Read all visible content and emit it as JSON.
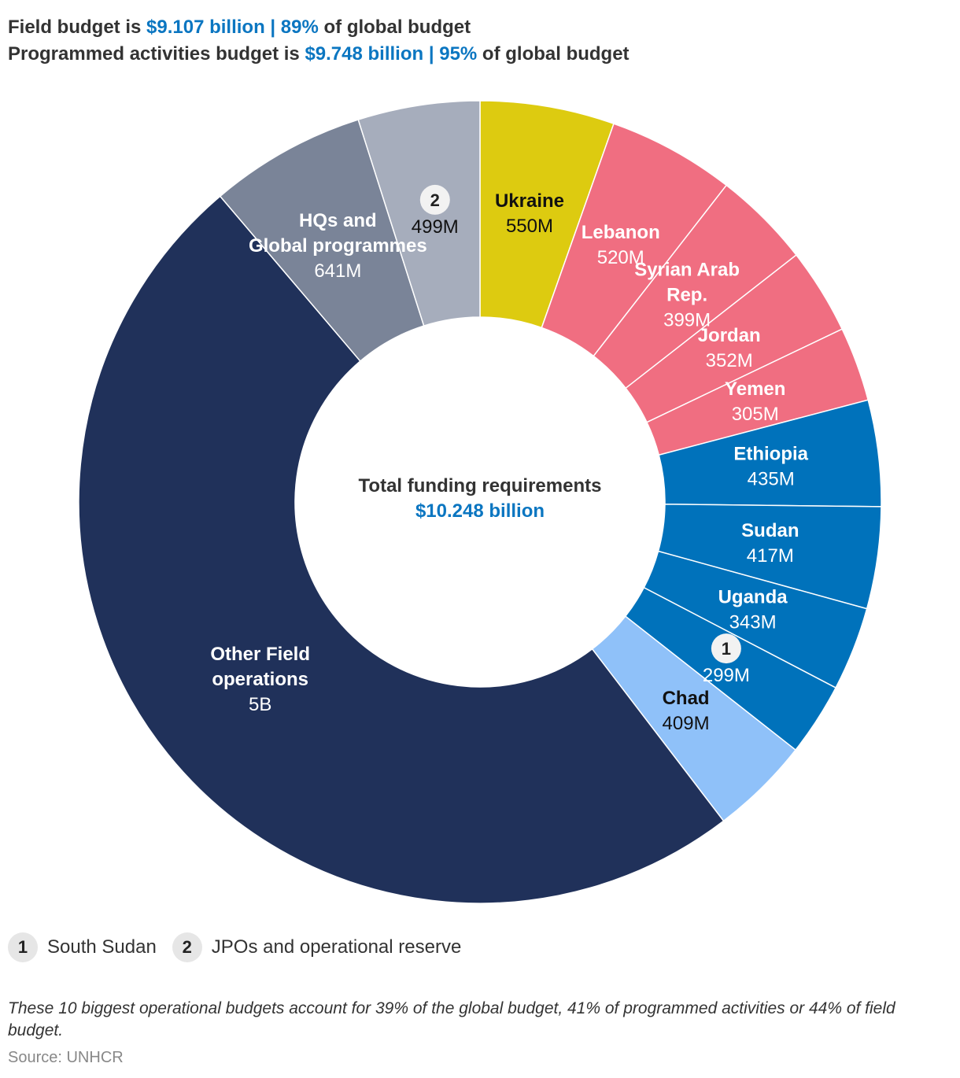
{
  "header": {
    "line1_a": "Field budget is ",
    "line1_b": "$9.107 billion | 89%",
    "line1_c": " of global budget",
    "line2_a": "Programmed activities budget is ",
    "line2_b": "$9.748 billion | 95%",
    "line2_c": " of global budget"
  },
  "center": {
    "title": "Total funding requirements",
    "value": "$10.248 billion"
  },
  "chart_data": {
    "type": "pie",
    "subtype": "donut",
    "units": "M (USD millions)",
    "slices": [
      {
        "label": "Ukraine",
        "display": "550M",
        "value": 550,
        "color": "#ddcb10",
        "text_color": "#111111"
      },
      {
        "label": "Lebanon",
        "display": "520M",
        "value": 520,
        "color": "#f06e81",
        "text_color": "#ffffff"
      },
      {
        "label": "Syrian Arab Rep.",
        "display": "399M",
        "value": 399,
        "color": "#f06e81",
        "text_color": "#ffffff"
      },
      {
        "label": "Jordan",
        "display": "352M",
        "value": 352,
        "color": "#f06e81",
        "text_color": "#ffffff"
      },
      {
        "label": "Yemen",
        "display": "305M",
        "value": 305,
        "color": "#f06e81",
        "text_color": "#ffffff"
      },
      {
        "label": "Ethiopia",
        "display": "435M",
        "value": 435,
        "color": "#0072bb",
        "text_color": "#ffffff"
      },
      {
        "label": "Sudan",
        "display": "417M",
        "value": 417,
        "color": "#0072bb",
        "text_color": "#ffffff"
      },
      {
        "label": "Uganda",
        "display": "343M",
        "value": 343,
        "color": "#0072bb",
        "text_color": "#ffffff"
      },
      {
        "label": "",
        "badge": "1",
        "display": "299M",
        "value": 299,
        "color": "#0072bb",
        "text_color": "#ffffff"
      },
      {
        "label": "Chad",
        "display": "409M",
        "value": 409,
        "color": "#8fc1f9",
        "text_color": "#111111"
      },
      {
        "label": "Other Field operations",
        "display": "5B",
        "value": 5000,
        "color": "#20315a",
        "text_color": "#ffffff"
      },
      {
        "label": "HQs and Global programmes",
        "display": "641M",
        "value": 641,
        "color": "#7a8498",
        "text_color": "#ffffff"
      },
      {
        "label": "",
        "badge": "2",
        "display": "499M",
        "value": 499,
        "color": "#a6adbc",
        "text_color": "#111111"
      }
    ]
  },
  "legend": [
    {
      "badge": "1",
      "label": "South Sudan"
    },
    {
      "badge": "2",
      "label": "JPOs and operational reserve"
    }
  ],
  "note": "These 10 biggest operational budgets account for 39% of the global budget, 41% of programmed activities or 44% of field budget.",
  "source": "Source: UNHCR"
}
